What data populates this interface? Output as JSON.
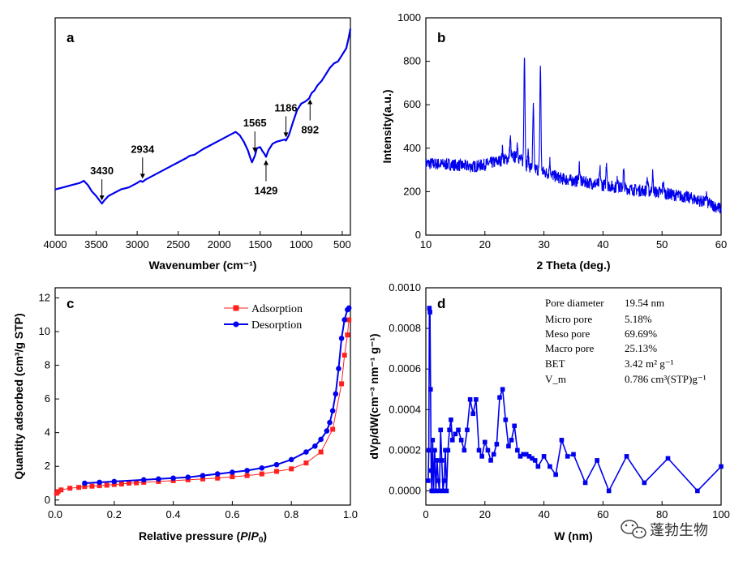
{
  "colors": {
    "blue": "#0000ee",
    "red": "#ff2020",
    "black": "#000000"
  },
  "watermark": {
    "text": "蓬勃生物",
    "icon": "wechat-icon"
  },
  "chart_data": [
    {
      "id": "a",
      "type": "line",
      "letter": "a",
      "xlabel": "Wavenumber (cm⁻¹)",
      "ylabel": "",
      "xlim": [
        4000,
        400
      ],
      "ylim": [
        0,
        100
      ],
      "xticks": [
        4000,
        3500,
        3000,
        2500,
        2000,
        1500,
        1000,
        500
      ],
      "series": [
        {
          "name": "FTIR",
          "x": [
            4000,
            3900,
            3800,
            3700,
            3650,
            3600,
            3550,
            3500,
            3460,
            3430,
            3400,
            3350,
            3300,
            3200,
            3100,
            3000,
            2960,
            2934,
            2900,
            2800,
            2700,
            2600,
            2500,
            2400,
            2360,
            2300,
            2200,
            2100,
            2000,
            1900,
            1800,
            1750,
            1700,
            1650,
            1620,
            1600,
            1565,
            1540,
            1500,
            1470,
            1450,
            1429,
            1400,
            1350,
            1300,
            1250,
            1200,
            1186,
            1150,
            1100,
            1050,
            1000,
            950,
            900,
            892,
            870,
            840,
            800,
            750,
            700,
            650,
            600,
            550,
            500,
            450,
            420,
            400
          ],
          "y": [
            21,
            22,
            23,
            24,
            25,
            23,
            20,
            18,
            16,
            14.5,
            16,
            18,
            19,
            21,
            22,
            24,
            25,
            24.5,
            25.5,
            27.5,
            29.5,
            31.5,
            33.5,
            35.5,
            36.5,
            37,
            39.5,
            41.5,
            43.5,
            45.5,
            47.5,
            46,
            43,
            39,
            35.5,
            33.5,
            36.5,
            40,
            40.5,
            38.5,
            37.5,
            36,
            39,
            42,
            43,
            43.5,
            44,
            43.5,
            46,
            52,
            57.5,
            60.5,
            61.5,
            63,
            64,
            65.5,
            66.5,
            69,
            71,
            74,
            77,
            79,
            80,
            83,
            86,
            91,
            95
          ]
        }
      ],
      "annotations": [
        {
          "label": "3430",
          "x": 3430,
          "y": 14.5,
          "dir": "down"
        },
        {
          "label": "2934",
          "x": 2934,
          "y": 24.5,
          "dir": "down"
        },
        {
          "label": "1565",
          "x": 1565,
          "y": 36.5,
          "dir": "down"
        },
        {
          "label": "1429",
          "x": 1429,
          "y": 36,
          "dir": "up"
        },
        {
          "label": "1186",
          "x": 1186,
          "y": 43.5,
          "dir": "down"
        },
        {
          "label": "892",
          "x": 892,
          "y": 64,
          "dir": "up"
        }
      ]
    },
    {
      "id": "b",
      "type": "line",
      "letter": "b",
      "xlabel": "2 Theta (deg.)",
      "ylabel": "Intensity(a.u.)",
      "xlim": [
        10,
        60
      ],
      "ylim": [
        0,
        1000
      ],
      "xticks": [
        10,
        20,
        30,
        40,
        50,
        60
      ],
      "yticks": [
        0,
        200,
        400,
        600,
        800,
        1000
      ],
      "baseline": [
        [
          10,
          330
        ],
        [
          14,
          325
        ],
        [
          18,
          315
        ],
        [
          20,
          325
        ],
        [
          23,
          345
        ],
        [
          25,
          360
        ],
        [
          26,
          350
        ],
        [
          27,
          320
        ],
        [
          29,
          300
        ],
        [
          31,
          280
        ],
        [
          33,
          260
        ],
        [
          35,
          250
        ],
        [
          38,
          240
        ],
        [
          40,
          230
        ],
        [
          45,
          210
        ],
        [
          50,
          195
        ],
        [
          55,
          170
        ],
        [
          58,
          145
        ],
        [
          60,
          120
        ]
      ],
      "peaks": [
        {
          "x": 23.0,
          "h": 50
        },
        {
          "x": 24.3,
          "h": 90
        },
        {
          "x": 25.5,
          "h": 70
        },
        {
          "x": 26.7,
          "h": 520
        },
        {
          "x": 27.3,
          "h": 60
        },
        {
          "x": 28.2,
          "h": 280
        },
        {
          "x": 29.4,
          "h": 490
        },
        {
          "x": 31.0,
          "h": 60
        },
        {
          "x": 36.0,
          "h": 80
        },
        {
          "x": 39.5,
          "h": 70
        },
        {
          "x": 40.6,
          "h": 110
        },
        {
          "x": 42.5,
          "h": 50
        },
        {
          "x": 43.5,
          "h": 80
        },
        {
          "x": 47.5,
          "h": 60
        },
        {
          "x": 48.4,
          "h": 80
        },
        {
          "x": 50.2,
          "h": 50
        },
        {
          "x": 57.5,
          "h": 40
        }
      ],
      "noise": 28
    },
    {
      "id": "c",
      "type": "line",
      "letter": "c",
      "xlabel": "Relative pressure (P/P₀)",
      "xlabel_parts": [
        "Relative pressure (",
        "P",
        "/",
        "P",
        "0",
        ")"
      ],
      "ylabel": "Quantity adsorbed (cm³/g STP)",
      "xlim": [
        0,
        1.0
      ],
      "ylim": [
        -0.3,
        12.6
      ],
      "xticks": [
        0.0,
        0.2,
        0.4,
        0.6,
        0.8,
        1.0
      ],
      "xtick_labels": [
        "0.0",
        "0.2",
        "0.4",
        "0.6",
        "0.8",
        "1.0"
      ],
      "yticks": [
        0,
        2,
        4,
        6,
        8,
        10,
        12
      ],
      "series": [
        {
          "name": "Adsorption",
          "color": "#ff2020",
          "marker": "square",
          "x": [
            0.005,
            0.01,
            0.02,
            0.05,
            0.08,
            0.1,
            0.125,
            0.15,
            0.175,
            0.2,
            0.225,
            0.25,
            0.275,
            0.3,
            0.35,
            0.4,
            0.45,
            0.5,
            0.55,
            0.6,
            0.65,
            0.7,
            0.75,
            0.8,
            0.85,
            0.9,
            0.94,
            0.97,
            0.98,
            0.99,
            0.995
          ],
          "y": [
            0.4,
            0.5,
            0.6,
            0.7,
            0.75,
            0.8,
            0.82,
            0.85,
            0.88,
            0.92,
            0.95,
            1.0,
            1.02,
            1.05,
            1.1,
            1.15,
            1.2,
            1.25,
            1.3,
            1.38,
            1.45,
            1.55,
            1.7,
            1.85,
            2.2,
            2.85,
            4.2,
            6.9,
            8.6,
            9.8,
            10.7
          ]
        },
        {
          "name": "Desorption",
          "color": "#0000ee",
          "marker": "circle",
          "x": [
            0.1,
            0.15,
            0.2,
            0.3,
            0.35,
            0.4,
            0.45,
            0.5,
            0.55,
            0.6,
            0.65,
            0.7,
            0.75,
            0.8,
            0.85,
            0.88,
            0.9,
            0.92,
            0.93,
            0.94,
            0.95,
            0.96,
            0.97,
            0.98,
            0.99,
            0.995
          ],
          "y": [
            1.0,
            1.05,
            1.1,
            1.2,
            1.25,
            1.3,
            1.35,
            1.45,
            1.55,
            1.65,
            1.75,
            1.9,
            2.1,
            2.4,
            2.85,
            3.2,
            3.6,
            4.1,
            4.6,
            5.3,
            6.3,
            7.8,
            9.6,
            10.7,
            11.3,
            11.4
          ]
        }
      ]
    },
    {
      "id": "d",
      "type": "line",
      "letter": "d",
      "xlabel": "W (nm)",
      "ylabel": "dVp/dW(cm⁻³ nm⁻¹ g⁻¹)",
      "xlim": [
        0,
        100
      ],
      "ylim": [
        -7e-05,
        0.001
      ],
      "xticks": [
        0,
        20,
        40,
        60,
        80,
        100
      ],
      "yticks": [
        0,
        0.0002,
        0.0004,
        0.0006,
        0.0008,
        0.001
      ],
      "ytick_labels": [
        "0.0000",
        "0.0002",
        "0.0004",
        "0.0006",
        "0.0008",
        "0.0010"
      ],
      "series": [
        {
          "name": "Pore size distribution",
          "color": "#0000ee",
          "marker": "square",
          "x": [
            0.8,
            1.0,
            1.2,
            1.4,
            1.6,
            1.8,
            2.0,
            2.3,
            2.6,
            3.0,
            3.4,
            3.8,
            4.2,
            4.6,
            5.0,
            5.4,
            5.8,
            6.2,
            6.6,
            7.0,
            7.5,
            8,
            8.5,
            9,
            10,
            11,
            12,
            13,
            14,
            15,
            16,
            17,
            18,
            19,
            20,
            21,
            22,
            23,
            24,
            25,
            26,
            27,
            28,
            29,
            30,
            31,
            32,
            33,
            34,
            35,
            36,
            37,
            38,
            40,
            42,
            44,
            46,
            48,
            50,
            54,
            58,
            62,
            68,
            74,
            82,
            92,
            100
          ],
          "y": [
            5e-05,
            0.0002,
            0.0009,
            0.00088,
            0.0005,
            0.0001,
            0.0,
            0.00025,
            0.0,
            0.0002,
            0.0,
            0.00015,
            5e-05,
            0.0,
            0.0003,
            0.00015,
            0.0,
            5e-05,
            0.0002,
            0.0,
            0.0002,
            0.0003,
            0.00035,
            0.00025,
            0.00028,
            0.0003,
            0.00025,
            0.0002,
            0.0003,
            0.00045,
            0.00038,
            0.00045,
            0.0002,
            0.00017,
            0.00024,
            0.0002,
            0.00015,
            0.00018,
            0.00023,
            0.00046,
            0.0005,
            0.00035,
            0.00022,
            0.00025,
            0.00032,
            0.0002,
            0.00017,
            0.00018,
            0.00018,
            0.00017,
            0.00016,
            0.00015,
            0.00012,
            0.00017,
            0.00012,
            8e-05,
            0.00025,
            0.00017,
            0.00018,
            4e-05,
            0.00015,
            0.0,
            0.00017,
            4e-05,
            0.00016,
            0.0,
            0.00012
          ]
        }
      ],
      "stats": [
        {
          "label": "Pore diameter",
          "value": "19.54 nm"
        },
        {
          "label": "Micro pore",
          "value": "5.18%"
        },
        {
          "label": "Meso  pore",
          "value": "69.69%"
        },
        {
          "label": "Macro pore",
          "value": "25.13%"
        },
        {
          "label": "BET",
          "value": "3.42 m² g⁻¹"
        },
        {
          "label": "V_m",
          "value": "0.786 cm³(STP)g⁻¹"
        }
      ]
    }
  ]
}
